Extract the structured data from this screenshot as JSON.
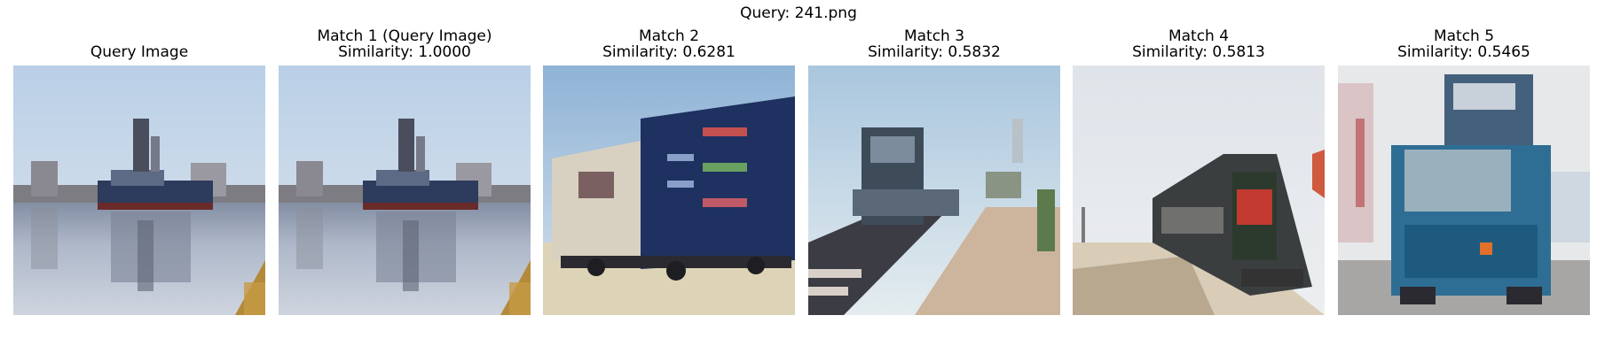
{
  "figure": {
    "title": "Query: 241.png"
  },
  "panels": [
    {
      "title": "Query Image",
      "subtitle": "",
      "scene": "ship-harbor"
    },
    {
      "title": "Match 1 (Query Image)",
      "subtitle": "Similarity: 1.0000",
      "scene": "ship-harbor"
    },
    {
      "title": "Match 2",
      "subtitle": "Similarity: 0.6281",
      "scene": "blue-truck-side"
    },
    {
      "title": "Match 3",
      "subtitle": "Similarity: 0.5832",
      "scene": "train-platform"
    },
    {
      "title": "Match 4",
      "subtitle": "Similarity: 0.5813",
      "scene": "red-locomotive"
    },
    {
      "title": "Match 5",
      "subtitle": "Similarity: 0.5465",
      "scene": "blue-truck-front"
    }
  ]
}
